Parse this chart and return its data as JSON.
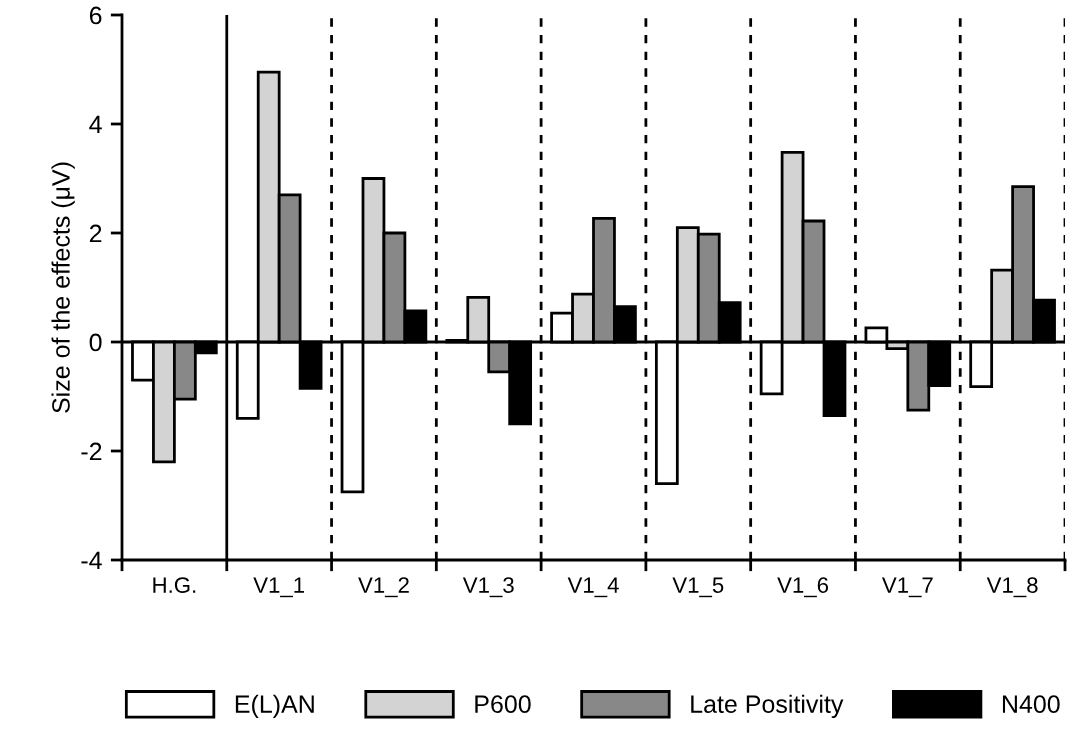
{
  "chart_data": {
    "type": "bar",
    "ylabel": "Size of the effects (μV)",
    "categories": [
      "H.G.",
      "V1_1",
      "V1_2",
      "V1_3",
      "V1_4",
      "V1_5",
      "V1_6",
      "V1_7",
      "V1_8"
    ],
    "series": [
      {
        "name": "E(L)AN",
        "color": "#ffffff",
        "values": [
          -0.7,
          -1.4,
          -2.75,
          0.03,
          0.53,
          -2.6,
          -0.95,
          0.26,
          -0.82
        ]
      },
      {
        "name": "P600",
        "color": "#d3d3d3",
        "values": [
          -2.2,
          4.95,
          3.0,
          0.82,
          0.88,
          2.1,
          3.48,
          -0.12,
          1.32
        ]
      },
      {
        "name": "Late Positivity",
        "color": "#888888",
        "values": [
          -1.05,
          2.7,
          2.0,
          -0.55,
          2.27,
          1.98,
          2.22,
          -1.25,
          2.85
        ]
      },
      {
        "name": "N400",
        "color": "#000000",
        "values": [
          -0.2,
          -0.85,
          0.57,
          -1.5,
          0.65,
          0.72,
          -1.35,
          -0.8,
          0.77
        ]
      }
    ],
    "ylim": [
      -4,
      6
    ],
    "yticks": [
      -4,
      -2,
      0,
      2,
      4,
      6
    ],
    "ref_lines": [
      {
        "axis": "y",
        "value": 0,
        "color": "#000000",
        "line_style": "solid"
      }
    ],
    "grid": "x",
    "legend": "bottom"
  }
}
